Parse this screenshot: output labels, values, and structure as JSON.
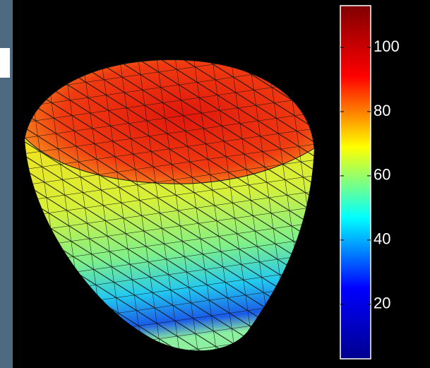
{
  "chart_data": {
    "type": "surface",
    "colormap": "jet",
    "colorbar": {
      "clim": [
        3,
        113
      ],
      "ticks": [
        20,
        40,
        60,
        80,
        100
      ]
    }
  }
}
